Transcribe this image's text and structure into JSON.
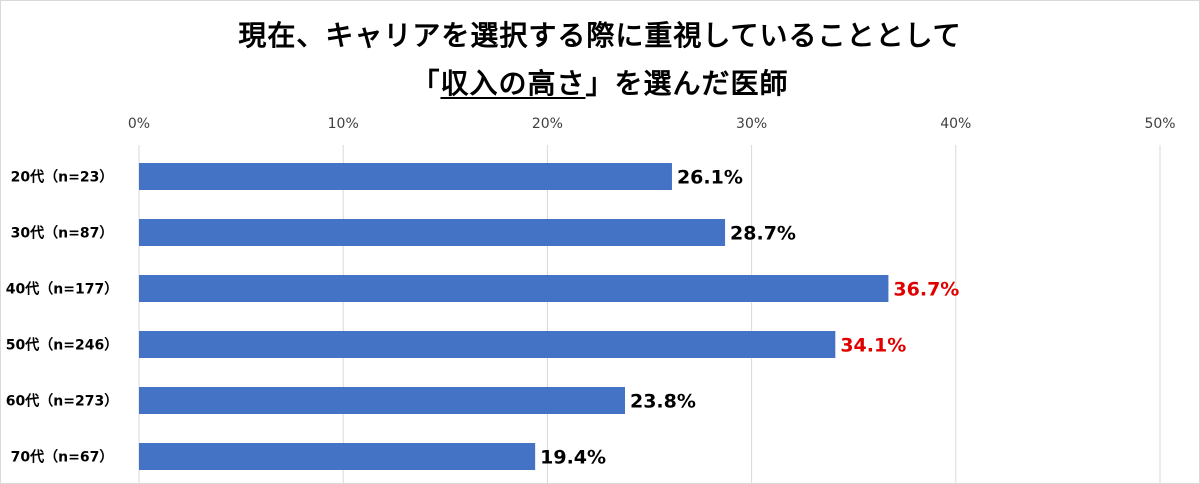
{
  "title_line1": "現在、キャリアを選択する際に重視していることとして",
  "title_line2_open": "「",
  "title_line2_underlined": "収入の高さ",
  "title_line2_close": "」を選んだ医師",
  "colors": {
    "bar": "#4472C4",
    "label_default": "#000000",
    "label_highlight": "#E00000",
    "grid": "#d9d9d9"
  },
  "chart_data": {
    "type": "bar",
    "orientation": "horizontal",
    "categories": [
      "20代（n=23）",
      "30代（n=87）",
      "40代（n=177）",
      "50代（n=246）",
      "60代（n=273）",
      "70代（n=67）"
    ],
    "values": [
      26.1,
      28.7,
      36.7,
      34.1,
      23.8,
      19.4
    ],
    "value_labels": [
      "26.1%",
      "28.7%",
      "36.7%",
      "34.1%",
      "23.8%",
      "19.4%"
    ],
    "highlighted": [
      false,
      false,
      true,
      true,
      false,
      false
    ],
    "xlim": [
      0,
      50
    ],
    "x_ticks": [
      "0%",
      "10%",
      "20%",
      "30%",
      "40%",
      "50%"
    ],
    "x_tick_values": [
      0,
      10,
      20,
      30,
      40,
      50
    ],
    "x_axis_position": "top",
    "grid": true
  }
}
